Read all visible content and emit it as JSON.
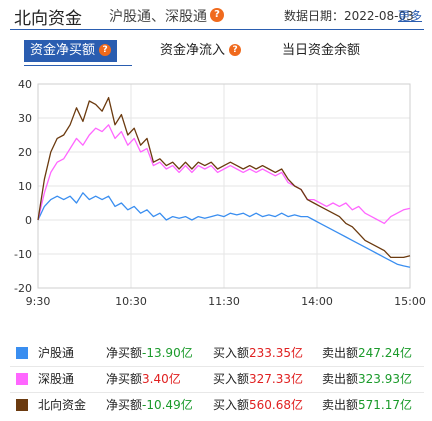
{
  "header": {
    "title": "北向资金",
    "subtitle": "沪股通、深股通",
    "date_label": "数据日期：2022-08-03",
    "more_link": "更多"
  },
  "tabs": [
    {
      "label": "资金净买额",
      "active": true
    },
    {
      "label": "资金净流入",
      "active": false
    },
    {
      "label": "当日资金余额",
      "active": false
    }
  ],
  "colors": {
    "accent": "#2a5db0",
    "help_icon": "#f06a1d",
    "hgt": "#3a8ef0",
    "sgt": "#ff66ff",
    "north": "#6b3a0f",
    "positive": "#e02020",
    "negative": "#1a9a2a"
  },
  "chart_data": {
    "type": "line",
    "y_ticks": [
      "40",
      "30",
      "20",
      "10",
      "0",
      "-10",
      "-20"
    ],
    "x_ticks": [
      "9:30",
      "10:30",
      "11:30",
      "14:00",
      "15:00"
    ],
    "ylim": [
      -20,
      40
    ],
    "grid": true,
    "series": [
      {
        "name": "沪股通",
        "color": "#3a8ef0",
        "values": [
          0,
          4,
          6,
          7,
          6,
          7,
          5,
          8,
          6,
          7,
          6,
          7,
          4,
          5,
          3,
          4,
          2,
          3,
          1,
          2,
          0,
          1,
          0.5,
          1,
          0,
          1,
          0.5,
          1,
          1.5,
          1,
          2,
          1.5,
          2,
          1,
          2,
          1,
          1.5,
          1,
          2,
          1,
          1.5,
          1,
          1,
          0,
          -1,
          -2,
          -3,
          -4,
          -5,
          -6,
          -7,
          -8,
          -9,
          -10,
          -11,
          -12,
          -13,
          -13.5,
          -13.9
        ]
      },
      {
        "name": "深股通",
        "color": "#ff66ff",
        "values": [
          0,
          8,
          14,
          17,
          18,
          21,
          24,
          22,
          25,
          27,
          26,
          28,
          24,
          26,
          22,
          24,
          20,
          21,
          16,
          17,
          15,
          16,
          14,
          16,
          14,
          16,
          15,
          16,
          14,
          15,
          16,
          15,
          14,
          15,
          14,
          15,
          14,
          13,
          14,
          11,
          10,
          9,
          6,
          6,
          5,
          4,
          5,
          4,
          5,
          3,
          4,
          2,
          1,
          0,
          -1,
          1,
          2,
          3,
          3.4
        ]
      },
      {
        "name": "北向资金",
        "color": "#6b3a0f",
        "values": [
          0,
          12,
          20,
          24,
          25,
          28,
          33,
          29,
          35,
          34,
          32,
          36,
          28,
          31,
          25,
          27,
          22,
          24,
          17,
          18,
          16,
          17,
          15,
          17,
          15,
          17,
          16,
          17,
          15,
          16,
          17,
          16,
          15,
          16,
          15,
          16,
          15,
          14,
          15,
          12,
          10,
          9,
          6,
          5,
          4,
          3,
          2,
          1,
          -1,
          -2,
          -4,
          -6,
          -7,
          -8,
          -9,
          -11,
          -11,
          -11,
          -10.49
        ]
      }
    ]
  },
  "legend": [
    {
      "name": "沪股通",
      "net_label": "净买额",
      "net_value": "-13.90亿",
      "net_sign": "negative",
      "buy_label": "买入额",
      "buy_value": "233.35亿",
      "sell_label": "卖出额",
      "sell_value": "247.24亿",
      "color": "#3a8ef0"
    },
    {
      "name": "深股通",
      "net_label": "净买额",
      "net_value": "3.40亿",
      "net_sign": "positive",
      "buy_label": "买入额",
      "buy_value": "327.33亿",
      "sell_label": "卖出额",
      "sell_value": "323.93亿",
      "color": "#ff66ff"
    },
    {
      "name": "北向资金",
      "net_label": "净买额",
      "net_value": "-10.49亿",
      "net_sign": "negative",
      "buy_label": "买入额",
      "buy_value": "560.68亿",
      "sell_label": "卖出额",
      "sell_value": "571.17亿",
      "color": "#6b3a0f"
    }
  ]
}
